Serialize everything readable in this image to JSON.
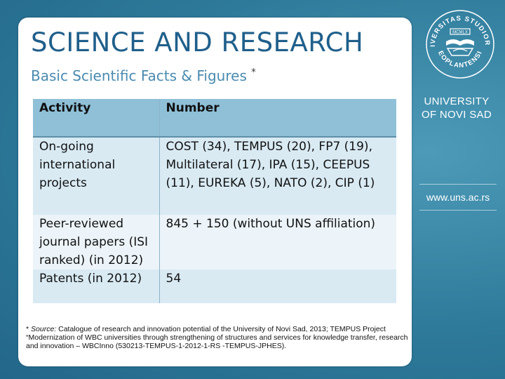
{
  "slide": {
    "title": "SCIENCE AND RESEARCH",
    "subtitle": "Basic Scientific Facts & Figures",
    "subtitle_marker": "*"
  },
  "table": {
    "headers": [
      "Activity",
      "Number"
    ],
    "rows": [
      {
        "activity": "On-going international projects",
        "number": "COST (34), TEMPUS (20), FP7 (19), Multilateral (17), IPA (15), CEEPUS (11), EUREKA (5), NATO (2), CIP (1)"
      },
      {
        "activity": "Peer-reviewed journal papers (ISI ranked) (in 2012)",
        "number": "845 + 150 (without UNS affiliation)"
      },
      {
        "activity": "Patents (in 2012)",
        "number": "54"
      }
    ]
  },
  "footnote": {
    "marker": "*",
    "source_label": "Source:",
    "text": "Catalogue of research and innovation potential of the University of Novi Sad, 2013; TEMPUS Project “Modernization of WBC universities through strengthening of structures and services for knowledge transfer, research and innovation – WBCInno (530213-TEMPUS-1-2012-1-RS -TEMPUS-JPHES)."
  },
  "sidebar": {
    "logo_text_top": "UNIVERSITAS STUDIORUM",
    "logo_text_bottom": "NEOPLANTENSIS",
    "logo_year": "MCMLX",
    "university_line1": "UNIVERSITY",
    "university_line2": "OF NOVI SAD",
    "website": "www.uns.ac.rs"
  },
  "colors": {
    "background": "#2f7c9c",
    "title": "#1f5f8b",
    "subtitle": "#4a8bb0",
    "table_header": "#8fc0d8",
    "table_row_dark": "#d9eaf3",
    "table_row_light": "#ecf4f9"
  }
}
